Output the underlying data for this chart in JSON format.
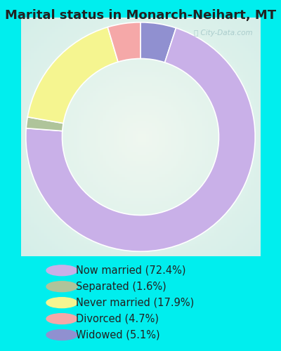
{
  "title": "Marital status in Monarch-Neihart, MT",
  "categories": [
    "Now married",
    "Separated",
    "Never married",
    "Divorced",
    "Widowed"
  ],
  "values": [
    72.4,
    1.6,
    17.9,
    4.7,
    5.1
  ],
  "colors": [
    "#c9b0e8",
    "#afc49a",
    "#f5f590",
    "#f5a8a8",
    "#9090d0"
  ],
  "legend_labels": [
    "Now married (72.4%)",
    "Separated (1.6%)",
    "Never married (17.9%)",
    "Divorced (4.7%)",
    "Widowed (5.1%)"
  ],
  "outer_bg": "#00eeee",
  "chart_bg_center": "#e8f5e8",
  "chart_bg_edge": "#d0ede8",
  "watermark": "City-Data.com",
  "title_fontsize": 13,
  "legend_fontsize": 10.5,
  "donut_width": 0.38
}
